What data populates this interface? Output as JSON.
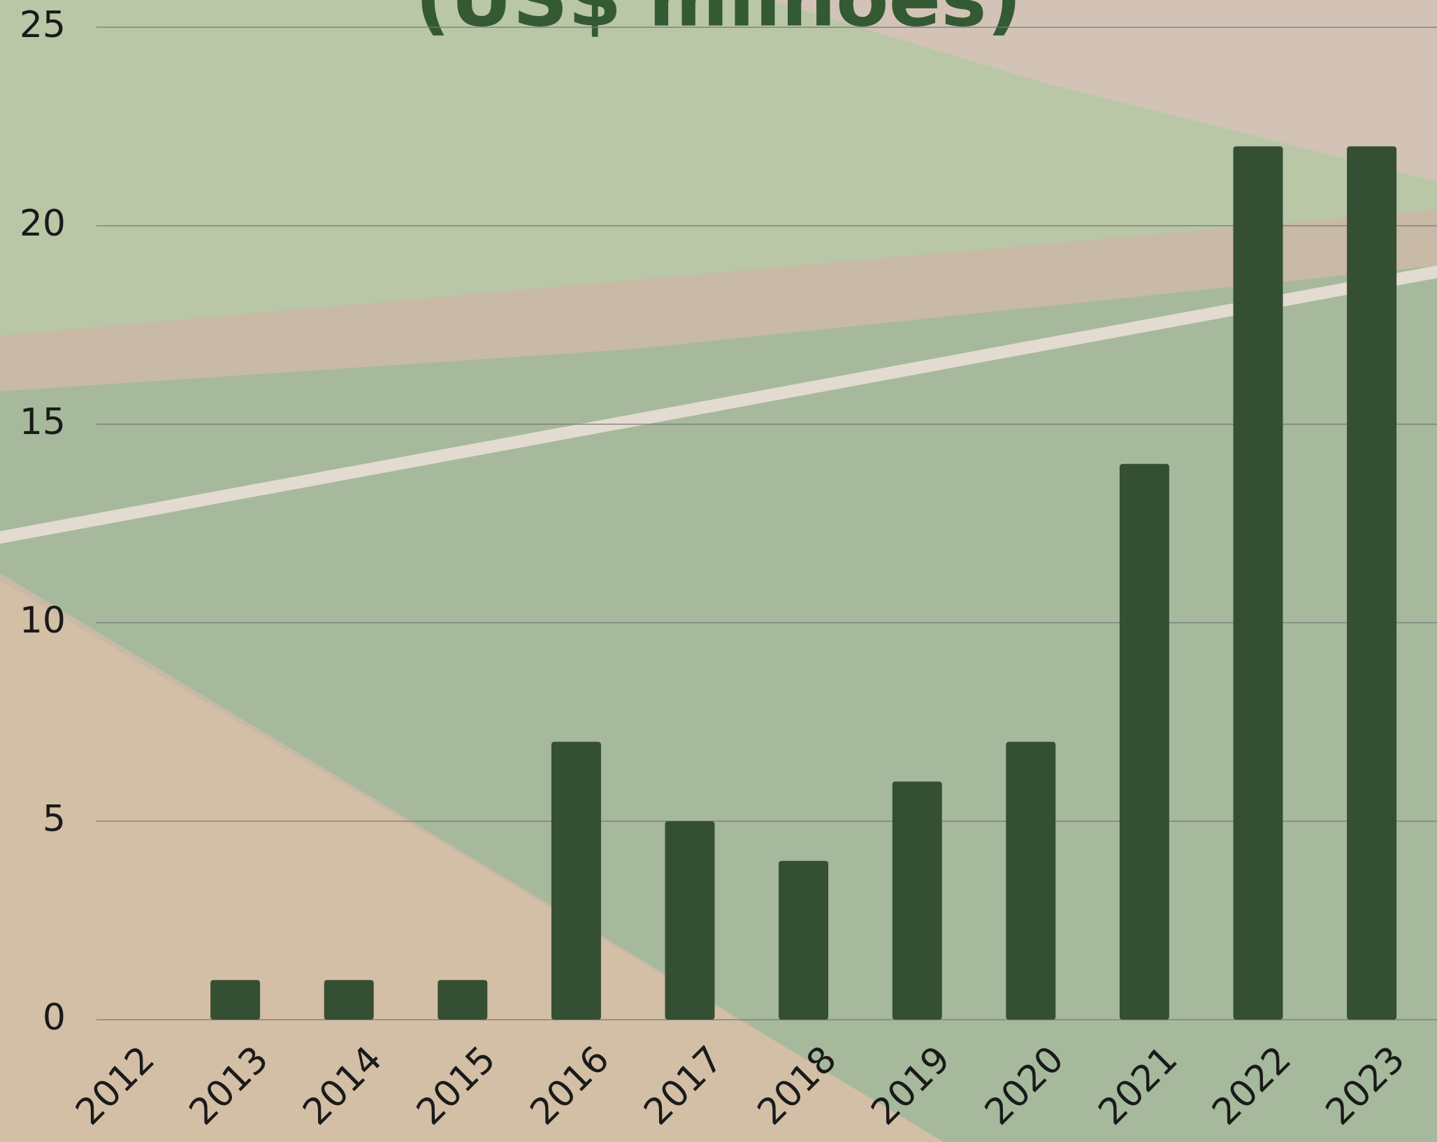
{
  "chart_data": {
    "type": "bar",
    "title": "(US$ milhões)",
    "categories": [
      "2012",
      "2013",
      "2014",
      "2015",
      "2016",
      "2017",
      "2018",
      "2019",
      "2020",
      "2021",
      "2022",
      "2023"
    ],
    "values": [
      0,
      1,
      1,
      1,
      7,
      5,
      4,
      6,
      7,
      14,
      22,
      22
    ],
    "color": "#354f33",
    "ylim": [
      0,
      25
    ],
    "yticks": [
      0,
      5,
      10,
      15,
      20,
      25
    ],
    "grid": true
  }
}
